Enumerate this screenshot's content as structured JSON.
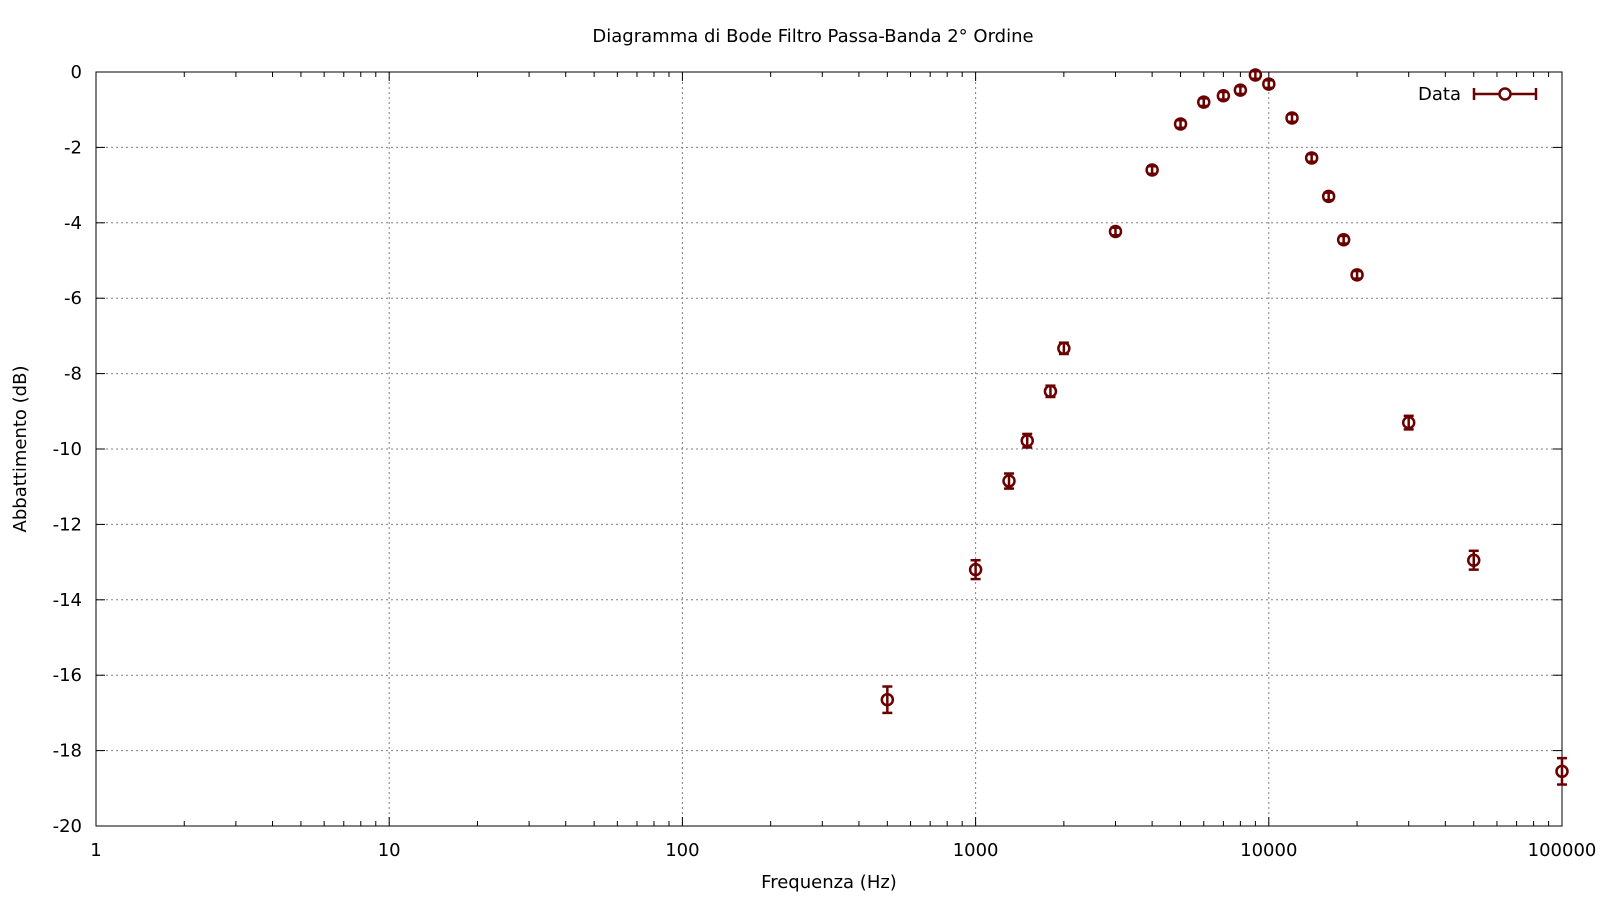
{
  "chart_data": {
    "type": "scatter",
    "title": "Diagramma di Bode Filtro Passa-Banda 2° Ordine",
    "xlabel": "Frequenza (Hz)",
    "ylabel": "Abbattimento (dB)",
    "xscale": "log",
    "xlim": [
      1,
      100000
    ],
    "ylim": [
      -20,
      0
    ],
    "xticks": [
      "1",
      "10",
      "100",
      "1000",
      "10000",
      "100000"
    ],
    "yticks": [
      "0",
      "-2",
      "-4",
      "-6",
      "-8",
      "-10",
      "-12",
      "-14",
      "-16",
      "-18",
      "-20"
    ],
    "grid": true,
    "legend_position": "top-right",
    "color": "#6b0000",
    "series": [
      {
        "name": "Data",
        "style": "points-with-y-errorbars",
        "points": [
          {
            "x": 500,
            "y": -16.65,
            "err": 0.35
          },
          {
            "x": 1000,
            "y": -13.2,
            "err": 0.25
          },
          {
            "x": 1300,
            "y": -10.85,
            "err": 0.2
          },
          {
            "x": 1500,
            "y": -9.78,
            "err": 0.18
          },
          {
            "x": 1800,
            "y": -8.47,
            "err": 0.15
          },
          {
            "x": 2000,
            "y": -7.33,
            "err": 0.15
          },
          {
            "x": 3000,
            "y": -4.23,
            "err": 0.1
          },
          {
            "x": 4000,
            "y": -2.6,
            "err": 0.1
          },
          {
            "x": 5000,
            "y": -1.38,
            "err": 0.1
          },
          {
            "x": 6000,
            "y": -0.8,
            "err": 0.1
          },
          {
            "x": 7000,
            "y": -0.63,
            "err": 0.1
          },
          {
            "x": 8000,
            "y": -0.48,
            "err": 0.1
          },
          {
            "x": 9000,
            "y": -0.08,
            "err": 0.1
          },
          {
            "x": 10000,
            "y": -0.32,
            "err": 0.1
          },
          {
            "x": 12000,
            "y": -1.22,
            "err": 0.1
          },
          {
            "x": 14000,
            "y": -2.28,
            "err": 0.1
          },
          {
            "x": 16000,
            "y": -3.3,
            "err": 0.1
          },
          {
            "x": 18000,
            "y": -4.45,
            "err": 0.1
          },
          {
            "x": 20000,
            "y": -5.38,
            "err": 0.1
          },
          {
            "x": 30000,
            "y": -9.3,
            "err": 0.18
          },
          {
            "x": 50000,
            "y": -12.95,
            "err": 0.25
          },
          {
            "x": 100000,
            "y": -18.55,
            "err": 0.35
          }
        ]
      }
    ]
  }
}
